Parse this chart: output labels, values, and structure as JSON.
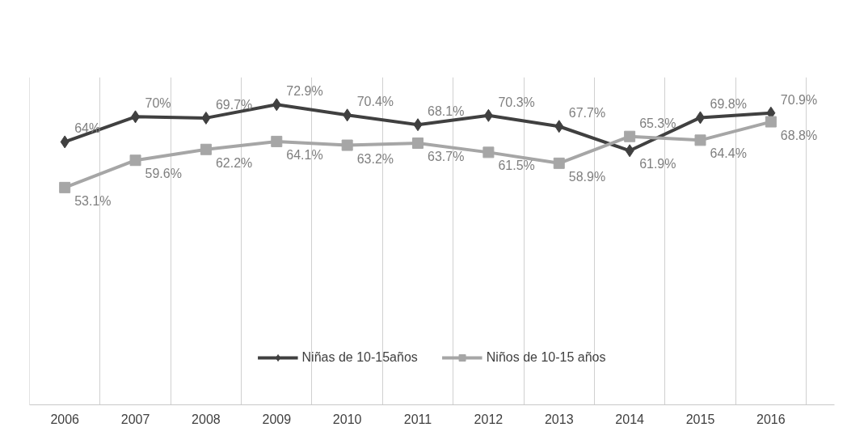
{
  "chart_data": {
    "type": "line",
    "categories": [
      "2006",
      "2007",
      "2008",
      "2009",
      "2010",
      "2011",
      "2012",
      "2013",
      "2014",
      "2015",
      "2016"
    ],
    "series": [
      {
        "name": "Niñas de 10-15años",
        "color": "#404040",
        "marker": "diamond",
        "values": [
          64,
          70,
          69.7,
          72.9,
          70.4,
          68.1,
          70.3,
          67.7,
          61.9,
          69.8,
          70.9
        ],
        "value_labels": [
          "64%",
          "70%",
          "69.7%",
          "72.9%",
          "70.4%",
          "68.1%",
          "70.3%",
          "67.7%",
          "61.9%",
          "69.8%",
          "70.9%"
        ]
      },
      {
        "name": "Niños de 10-15 años",
        "color": "#a6a6a6",
        "marker": "square",
        "values": [
          53.1,
          59.6,
          62.2,
          64.1,
          63.2,
          63.7,
          61.5,
          58.9,
          65.3,
          64.4,
          68.8
        ],
        "value_labels": [
          "53.1%",
          "59.6%",
          "62.2%",
          "64.1%",
          "63.2%",
          "63.7%",
          "61.5%",
          "58.9%",
          "65.3%",
          "64.4%",
          "68.8%"
        ]
      }
    ],
    "grid": "x",
    "legend": "bottom",
    "line_style": "solid"
  }
}
